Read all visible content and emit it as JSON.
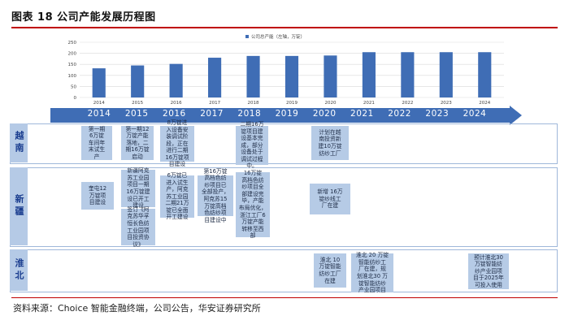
{
  "title": "图表 18 公司产能发展历程图",
  "source": "资料来源：Choice 智能金融终端，公司公告，华安证券研究所",
  "chart_data": {
    "type": "bar",
    "legend": "公司总产能（左轴，万锭）",
    "legend_position": "top-center",
    "categories": [
      "2014",
      "2015",
      "2016",
      "2017",
      "2018",
      "2019",
      "2020",
      "2021",
      "2022",
      "2023",
      "2024"
    ],
    "values": [
      132,
      145,
      152,
      180,
      188,
      188,
      190,
      205,
      205,
      205,
      205
    ],
    "ylim": [
      0,
      250
    ],
    "yticks": [
      0,
      50,
      100,
      150,
      200,
      250
    ],
    "grid": true,
    "bar_color": "#3f6db5"
  },
  "timeline_years": [
    "2014",
    "2015",
    "2016",
    "2017",
    "2018",
    "2019",
    "2020",
    "2021",
    "2022",
    "2023",
    "2024"
  ],
  "regions": {
    "vietnam": "越南",
    "xinjiang": "新疆",
    "huaibei": "淮北"
  },
  "events": {
    "v1": "第一期\n6万锭\n车间年\n末试生\n产",
    "v2": "第一期12\n万锭产能\n落地，二\n期16万锭\n启动",
    "v3": "8万锭进\n入设备安\n装调试阶\n段，正在\n进行二期\n16万锭项\n目建设",
    "v4": "二期16万\n锭项目建\n设基本完\n成，部分\n设备处于\n调试过程\n中。",
    "v5": "计划在越\n南投资新\n建10万锭\n纺纱工厂",
    "x1": "奎屯12\n万锭项\n目建设",
    "x2": "新疆阿克\n苏工业园\n项目一期\n16万锭建\n设已开工\n建设",
    "x3": "签订《阿\n克苏华孚\n恒长色纺\n工业园项\n目投资协\n议》",
    "x4": "6万锭已\n进入试生\n产，阿克\n苏工业园\n二期21万\n锭已全面\n开工建设",
    "x5": "第16万锭\n高档色纺\n纱项目已\n全部投产，\n阿克苏15\n万锭高档\n色纺纱项\n目建设中",
    "x6": "16万锭\n高档色纺\n纱项目全\n部建设完\n毕，产能\n布局优化，\n浙江工厂6\n万锭产能\n转移至西\n部",
    "x7": "新增 16万\n锭纱线工\n厂在建",
    "h1": "淮北 10\n万锭智能\n纺纱工厂\n在建",
    "h2": "淮北 20 万锭\n智能纺纱工\n厂在建，规\n划淮北30 万\n锭智能纺纱\n产业园项目",
    "h3": "预计淮北30\n万锭智能纺\n纱产业园项\n目于2025年\n可投入使用"
  }
}
